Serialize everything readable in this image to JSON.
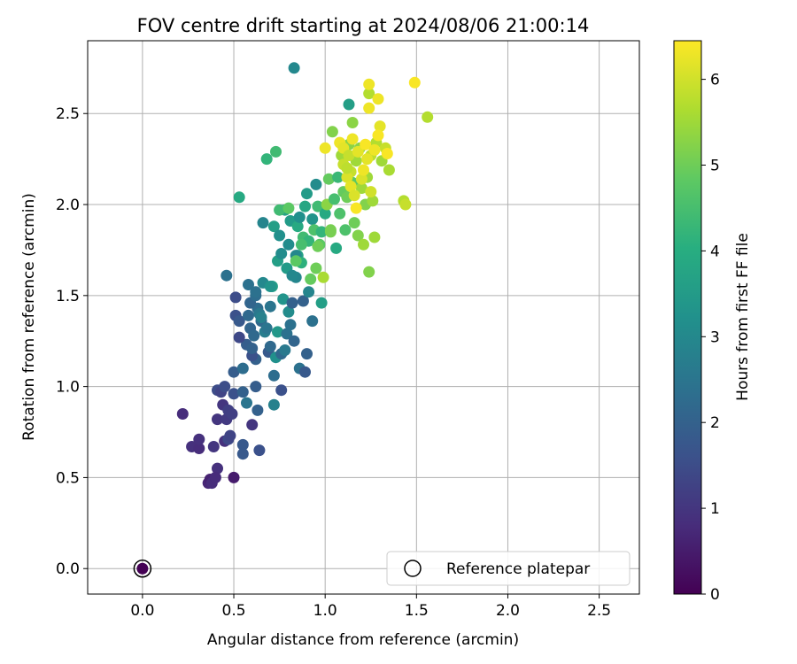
{
  "chart_data": {
    "type": "scatter",
    "title": "FOV centre drift starting at 2024/08/06 21:00:14",
    "xlabel": "Angular distance from reference (arcmin)",
    "ylabel": "Rotation from reference (arcmin)",
    "xlim": [
      -0.3,
      2.72
    ],
    "ylim": [
      -0.14,
      2.9
    ],
    "x_ticks": [
      "0.0",
      "0.5",
      "1.0",
      "1.5",
      "2.0",
      "2.5"
    ],
    "y_ticks": [
      "0.0",
      "0.5",
      "1.0",
      "1.5",
      "2.0",
      "2.5"
    ],
    "grid": true,
    "legend": {
      "position": "lower-right",
      "label": "Reference platepar"
    },
    "reference_point": {
      "x": 0.0,
      "y": 0.0
    },
    "colorbar": {
      "label": "Hours from first FF file",
      "min": 0,
      "max": 6.45,
      "ticks": [
        "0",
        "1",
        "2",
        "3",
        "4",
        "5",
        "6"
      ],
      "colormap": "viridis"
    },
    "points": [
      [
        0.22,
        0.85,
        0.8
      ],
      [
        0.27,
        0.67,
        0.9
      ],
      [
        0.31,
        0.66,
        0.8
      ],
      [
        0.31,
        0.71,
        0.9
      ],
      [
        0.36,
        0.47,
        0.7
      ],
      [
        0.37,
        0.49,
        0.6
      ],
      [
        0.38,
        0.47,
        0.8
      ],
      [
        0.39,
        0.67,
        1.0
      ],
      [
        0.41,
        0.55,
        0.9
      ],
      [
        0.4,
        0.5,
        0.8
      ],
      [
        0.41,
        0.82,
        1.0
      ],
      [
        0.41,
        0.98,
        1.5
      ],
      [
        0.44,
        0.9,
        1.0
      ],
      [
        0.45,
        0.7,
        0.9
      ],
      [
        0.46,
        0.82,
        1.1
      ],
      [
        0.47,
        0.87,
        1.2
      ],
      [
        0.47,
        0.71,
        1.4
      ],
      [
        0.48,
        0.73,
        1.3
      ],
      [
        0.49,
        0.85,
        1.2
      ],
      [
        0.5,
        0.5,
        0.5
      ],
      [
        0.43,
        0.97,
        1.3
      ],
      [
        0.45,
        1.0,
        1.5
      ],
      [
        0.5,
        0.96,
        1.6
      ],
      [
        0.5,
        1.08,
        1.9
      ],
      [
        0.51,
        1.39,
        1.6
      ],
      [
        0.51,
        1.49,
        1.5
      ],
      [
        0.53,
        1.36,
        1.8
      ],
      [
        0.55,
        1.1,
        2.3
      ],
      [
        0.55,
        0.97,
        2.0
      ],
      [
        0.55,
        0.68,
        1.8
      ],
      [
        0.55,
        0.63,
        1.8
      ],
      [
        0.57,
        1.23,
        1.9
      ],
      [
        0.59,
        1.32,
        2.1
      ],
      [
        0.6,
        0.79,
        1.0
      ],
      [
        0.61,
        1.28,
        2.2
      ],
      [
        0.62,
        1.0,
        1.9
      ],
      [
        0.62,
        1.15,
        2.0
      ],
      [
        0.63,
        1.43,
        2.3
      ],
      [
        0.63,
        0.87,
        2.0
      ],
      [
        0.64,
        0.65,
        1.6
      ],
      [
        0.65,
        1.36,
        2.2
      ],
      [
        0.57,
        0.91,
        2.5
      ],
      [
        0.58,
        1.56,
        2.4
      ],
      [
        0.59,
        1.46,
        2.1
      ],
      [
        0.6,
        1.17,
        1.6
      ],
      [
        0.62,
        1.5,
        2.3
      ],
      [
        0.46,
        1.61,
        2.4
      ],
      [
        0.53,
        1.27,
        1.4
      ],
      [
        0.58,
        1.39,
        2.2
      ],
      [
        0.6,
        1.21,
        2.0
      ],
      [
        0.62,
        1.52,
        2.4
      ],
      [
        0.64,
        1.4,
        2.6
      ],
      [
        0.65,
        1.38,
        2.8
      ],
      [
        0.66,
        1.57,
        3.0
      ],
      [
        0.67,
        1.3,
        2.7
      ],
      [
        0.68,
        1.32,
        2.5
      ],
      [
        0.69,
        1.19,
        1.8
      ],
      [
        0.7,
        1.44,
        2.5
      ],
      [
        0.7,
        1.22,
        2.2
      ],
      [
        0.71,
        1.55,
        3.6
      ],
      [
        0.72,
        0.9,
        2.8
      ],
      [
        0.72,
        1.06,
        2.3
      ],
      [
        0.73,
        1.16,
        3.2
      ],
      [
        0.74,
        1.3,
        3.4
      ],
      [
        0.76,
        0.98,
        1.6
      ],
      [
        0.76,
        1.18,
        2.2
      ],
      [
        0.77,
        1.48,
        3.3
      ],
      [
        0.78,
        1.2,
        2.6
      ],
      [
        0.79,
        1.29,
        2.4
      ],
      [
        0.8,
        1.41,
        3.1
      ],
      [
        0.81,
        1.34,
        2.4
      ],
      [
        0.82,
        1.46,
        2.0
      ],
      [
        0.83,
        1.25,
        2.1
      ],
      [
        0.84,
        1.6,
        2.9
      ],
      [
        0.85,
        1.72,
        3.7
      ],
      [
        0.86,
        1.1,
        2.4
      ],
      [
        0.88,
        1.47,
        2.0
      ],
      [
        0.89,
        1.08,
        1.8
      ],
      [
        0.9,
        1.18,
        2.0
      ],
      [
        0.91,
        1.52,
        2.9
      ],
      [
        0.93,
        1.36,
        2.4
      ],
      [
        0.66,
        1.9,
        2.9
      ],
      [
        0.7,
        1.55,
        3.3
      ],
      [
        0.72,
        1.88,
        3.6
      ],
      [
        0.74,
        1.69,
        3.6
      ],
      [
        0.75,
        1.83,
        3.2
      ],
      [
        0.76,
        1.73,
        3.1
      ],
      [
        0.78,
        1.97,
        3.7
      ],
      [
        0.79,
        1.65,
        3.5
      ],
      [
        0.8,
        1.78,
        3.1
      ],
      [
        0.81,
        1.91,
        3.5
      ],
      [
        0.82,
        1.61,
        3.0
      ],
      [
        0.84,
        1.72,
        3.0
      ],
      [
        0.85,
        1.88,
        3.9
      ],
      [
        0.86,
        1.93,
        3.2
      ],
      [
        0.87,
        1.68,
        4.1
      ],
      [
        0.88,
        1.82,
        4.4
      ],
      [
        0.89,
        1.99,
        3.8
      ],
      [
        0.9,
        2.06,
        3.5
      ],
      [
        0.91,
        1.8,
        4.2
      ],
      [
        0.93,
        1.92,
        3.3
      ],
      [
        0.94,
        1.86,
        4.6
      ],
      [
        0.95,
        2.11,
        3.1
      ],
      [
        0.96,
        1.99,
        4.4
      ],
      [
        0.97,
        1.78,
        4.8
      ],
      [
        0.98,
        1.46,
        3.6
      ],
      [
        0.99,
        1.6,
        5.6
      ],
      [
        1.0,
        1.95,
        3.9
      ],
      [
        0.53,
        2.04,
        3.9
      ],
      [
        0.68,
        2.25,
        4.2
      ],
      [
        0.73,
        2.29,
        4.4
      ],
      [
        0.83,
        2.75,
        3.0
      ],
      [
        1.13,
        2.55,
        3.6
      ],
      [
        0.75,
        1.97,
        4.4
      ],
      [
        0.8,
        1.98,
        4.8
      ],
      [
        0.84,
        1.69,
        4.8
      ],
      [
        0.87,
        1.78,
        4.5
      ],
      [
        0.92,
        1.59,
        4.9
      ],
      [
        0.95,
        1.65,
        5.0
      ],
      [
        0.96,
        1.77,
        5.0
      ],
      [
        0.98,
        1.85,
        4.2
      ],
      [
        1.01,
        2.0,
        5.3
      ],
      [
        1.02,
        2.14,
        4.9
      ],
      [
        1.03,
        1.85,
        5.1
      ],
      [
        1.04,
        2.4,
        5.2
      ],
      [
        1.05,
        2.03,
        4.5
      ],
      [
        1.06,
        1.76,
        3.9
      ],
      [
        1.07,
        2.15,
        4.3
      ],
      [
        1.08,
        1.95,
        4.6
      ],
      [
        1.09,
        2.27,
        5.5
      ],
      [
        1.1,
        2.07,
        4.9
      ],
      [
        1.11,
        1.86,
        4.6
      ],
      [
        1.12,
        2.04,
        5.0
      ],
      [
        1.13,
        2.33,
        5.3
      ],
      [
        1.14,
        2.18,
        5.9
      ],
      [
        1.15,
        2.12,
        4.8
      ],
      [
        1.16,
        1.9,
        5.0
      ],
      [
        1.17,
        2.24,
        5.5
      ],
      [
        1.18,
        1.83,
        5.2
      ],
      [
        1.19,
        2.31,
        5.3
      ],
      [
        1.2,
        2.09,
        5.5
      ],
      [
        1.21,
        1.78,
        5.5
      ],
      [
        1.22,
        2.0,
        5.2
      ],
      [
        1.23,
        2.15,
        5.5
      ],
      [
        1.24,
        1.63,
        5.2
      ],
      [
        1.25,
        2.27,
        5.8
      ],
      [
        1.26,
        2.02,
        5.5
      ],
      [
        1.27,
        1.82,
        5.5
      ],
      [
        1.28,
        2.34,
        5.7
      ],
      [
        1.3,
        2.43,
        6.2
      ],
      [
        1.31,
        2.24,
        5.5
      ],
      [
        1.33,
        2.31,
        5.9
      ],
      [
        1.35,
        2.19,
        5.6
      ],
      [
        1.15,
        2.45,
        5.3
      ],
      [
        1.24,
        2.61,
        5.7
      ],
      [
        1.24,
        2.66,
        6.3
      ],
      [
        1.29,
        2.58,
        6.3
      ],
      [
        1.49,
        2.67,
        6.4
      ],
      [
        1.56,
        2.48,
        5.7
      ],
      [
        1.43,
        2.02,
        5.7
      ],
      [
        1.44,
        2.0,
        5.9
      ],
      [
        1.0,
        2.31,
        6.3
      ],
      [
        1.08,
        2.34,
        6.3
      ],
      [
        1.1,
        2.31,
        6.2
      ],
      [
        1.1,
        2.22,
        5.9
      ],
      [
        1.12,
        2.15,
        6.1
      ],
      [
        1.13,
        2.27,
        5.9
      ],
      [
        1.14,
        2.1,
        6.2
      ],
      [
        1.15,
        2.36,
        6.3
      ],
      [
        1.16,
        2.05,
        6.1
      ],
      [
        1.17,
        1.98,
        6.4
      ],
      [
        1.18,
        2.29,
        6.2
      ],
      [
        1.2,
        2.14,
        6.1
      ],
      [
        1.21,
        2.19,
        6.3
      ],
      [
        1.22,
        2.33,
        6.4
      ],
      [
        1.23,
        2.25,
        6.2
      ],
      [
        1.24,
        2.53,
        6.3
      ],
      [
        1.25,
        2.07,
        6.0
      ],
      [
        1.27,
        2.3,
        6.3
      ],
      [
        1.29,
        2.38,
        6.4
      ],
      [
        1.34,
        2.28,
        6.4
      ],
      [
        1.03,
        1.86,
        5.1
      ],
      [
        1.12,
        2.2,
        5.8
      ]
    ]
  }
}
